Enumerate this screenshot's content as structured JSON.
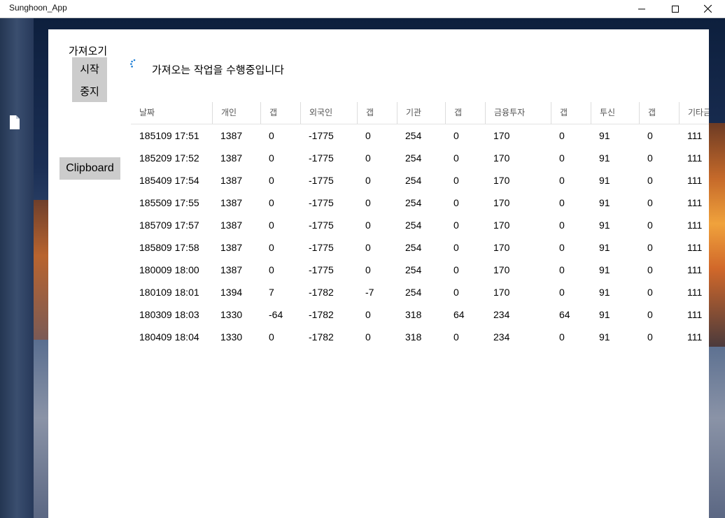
{
  "window": {
    "title": "Sunghoon_App",
    "minimize_icon": "minimize-icon",
    "maximize_icon": "maximize-icon",
    "close_icon": "close-icon"
  },
  "sidebar": {
    "file_icon": "file-icon"
  },
  "controls": {
    "fetch_label": "가져오기",
    "start_label": "시작",
    "stop_label": "중지",
    "clipboard_label": "Clipboard"
  },
  "status": {
    "text": "가져오는 작업을 수행중입니다",
    "spinner_icon": "loading-spinner-icon",
    "accent": "#1e7fd6"
  },
  "table": {
    "headers": [
      "날짜",
      "개인",
      "갭",
      "외국인",
      "갭",
      "기관",
      "갭",
      "금융투자",
      "갭",
      "투신",
      "갭",
      "기타금"
    ],
    "rows": [
      [
        "185109 17:51",
        "1387",
        "0",
        "-1775",
        "0",
        "254",
        "0",
        "170",
        "0",
        "91",
        "0",
        "111"
      ],
      [
        "185209 17:52",
        "1387",
        "0",
        "-1775",
        "0",
        "254",
        "0",
        "170",
        "0",
        "91",
        "0",
        "111"
      ],
      [
        "185409 17:54",
        "1387",
        "0",
        "-1775",
        "0",
        "254",
        "0",
        "170",
        "0",
        "91",
        "0",
        "111"
      ],
      [
        "185509 17:55",
        "1387",
        "0",
        "-1775",
        "0",
        "254",
        "0",
        "170",
        "0",
        "91",
        "0",
        "111"
      ],
      [
        "185709 17:57",
        "1387",
        "0",
        "-1775",
        "0",
        "254",
        "0",
        "170",
        "0",
        "91",
        "0",
        "111"
      ],
      [
        "185809 17:58",
        "1387",
        "0",
        "-1775",
        "0",
        "254",
        "0",
        "170",
        "0",
        "91",
        "0",
        "111"
      ],
      [
        "180009 18:00",
        "1387",
        "0",
        "-1775",
        "0",
        "254",
        "0",
        "170",
        "0",
        "91",
        "0",
        "111"
      ],
      [
        "180109 18:01",
        "1394",
        "7",
        "-1782",
        "-7",
        "254",
        "0",
        "170",
        "0",
        "91",
        "0",
        "111"
      ],
      [
        "180309 18:03",
        "1330",
        "-64",
        "-1782",
        "0",
        "318",
        "64",
        "234",
        "64",
        "91",
        "0",
        "111"
      ],
      [
        "180409 18:04",
        "1330",
        "0",
        "-1782",
        "0",
        "318",
        "0",
        "234",
        "0",
        "91",
        "0",
        "111"
      ]
    ]
  }
}
